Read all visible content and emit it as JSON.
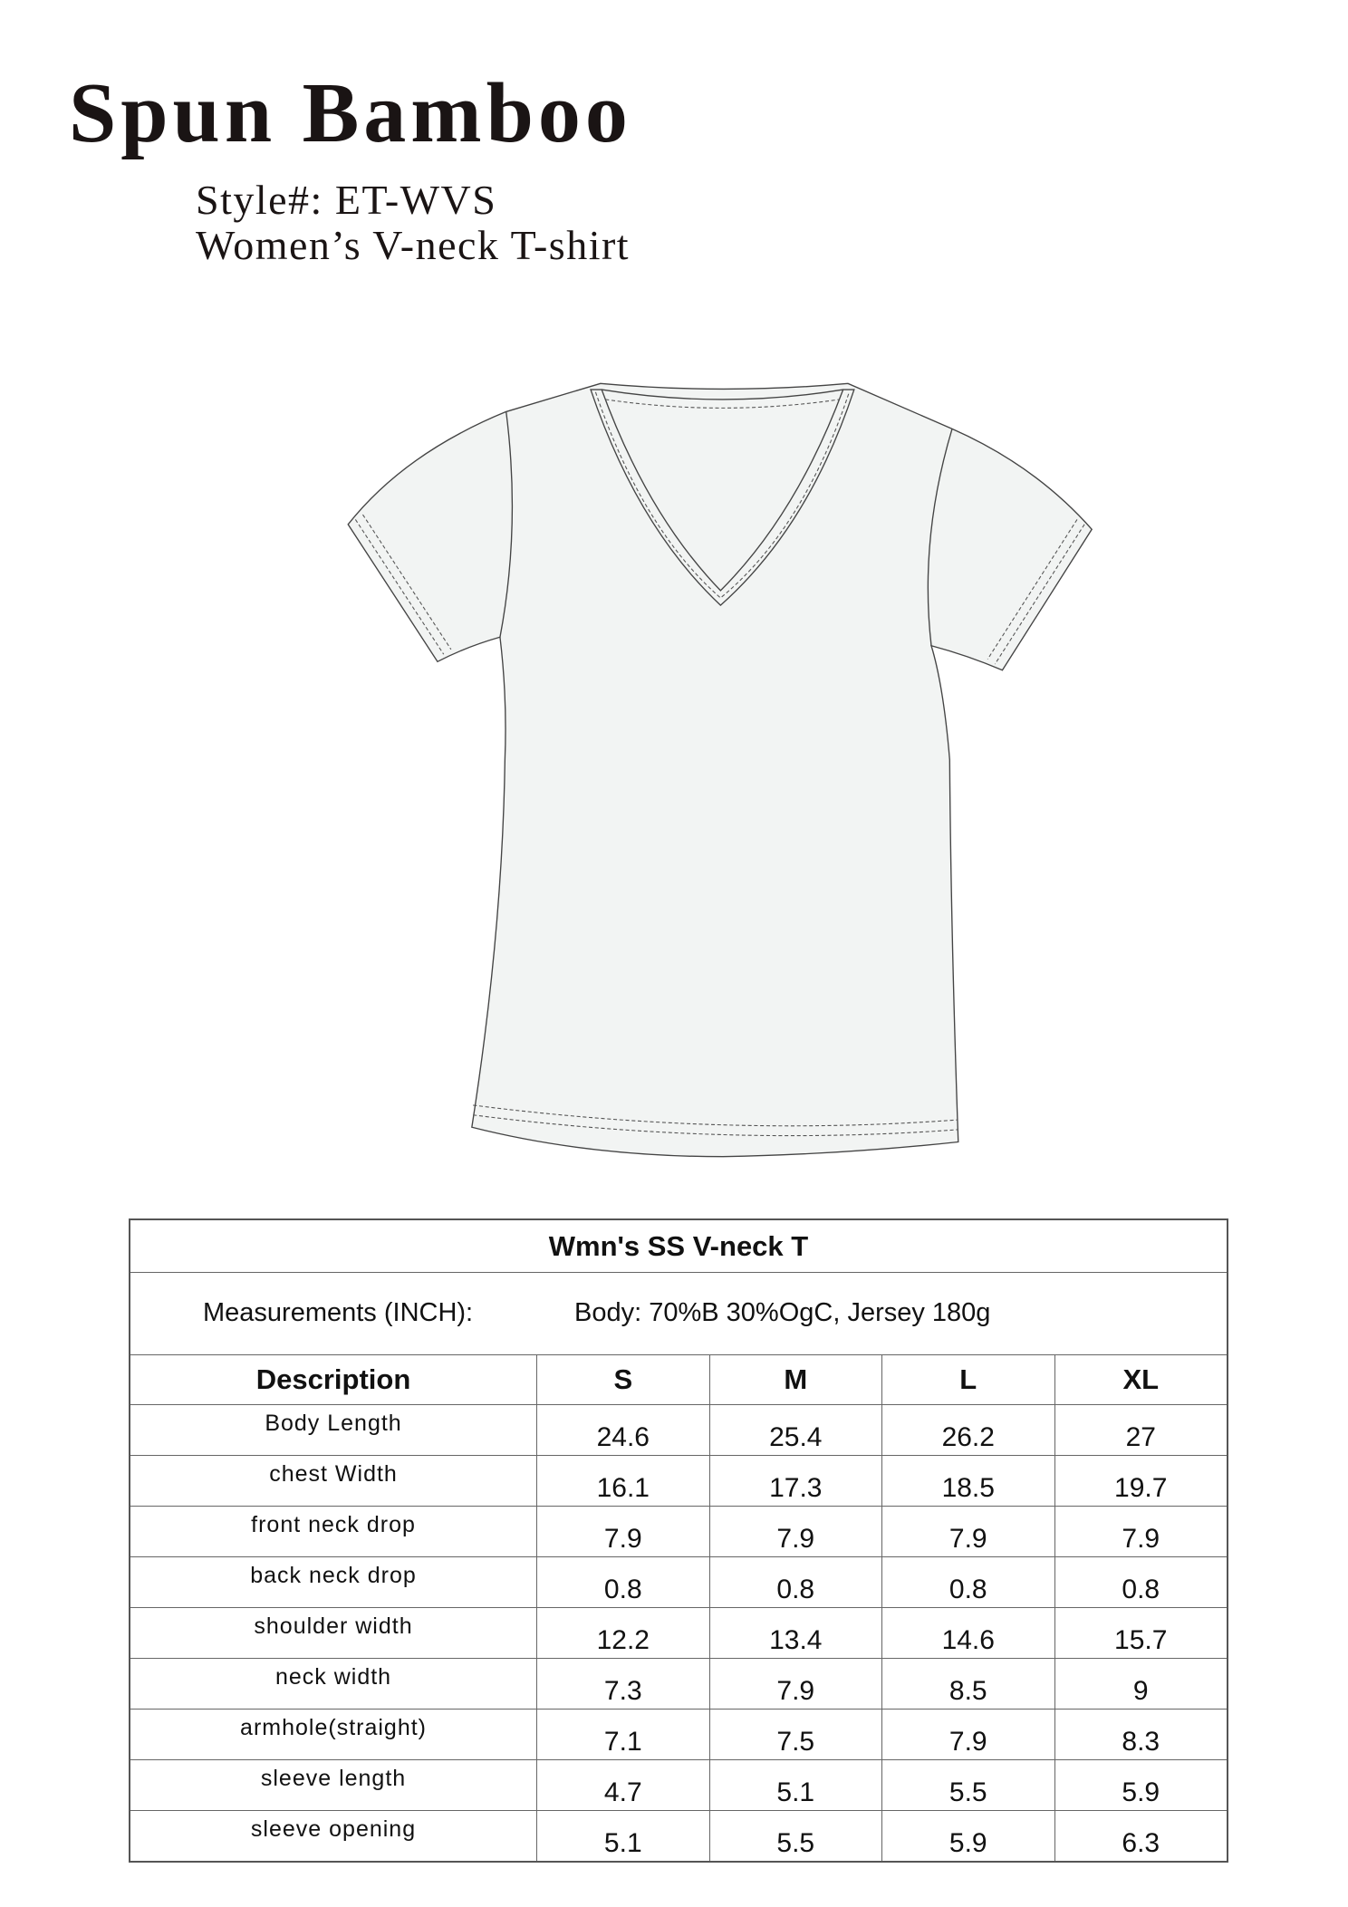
{
  "header": {
    "brand": "Spun Bamboo",
    "style_line": "Style#:  ET-WVS",
    "product_name": "Women’s V-neck T-shirt"
  },
  "illustration": {
    "type": "technical flat sketch",
    "garment": "v-neck t-shirt",
    "fill_color": "#f2f4f3"
  },
  "table": {
    "title": "Wmn's SS V-neck T",
    "measurements_label": "Measurements (INCH):",
    "fabric": "Body: 70%B 30%OgC, Jersey 180g",
    "columns": [
      "Description",
      "S",
      "M",
      "L",
      "XL"
    ],
    "rows": [
      {
        "desc": "Body Length",
        "v": [
          "24.6",
          "25.4",
          "26.2",
          "27"
        ]
      },
      {
        "desc": "chest Width",
        "v": [
          "16.1",
          "17.3",
          "18.5",
          "19.7"
        ]
      },
      {
        "desc": "front neck drop",
        "v": [
          "7.9",
          "7.9",
          "7.9",
          "7.9"
        ]
      },
      {
        "desc": "back neck drop",
        "v": [
          "0.8",
          "0.8",
          "0.8",
          "0.8"
        ]
      },
      {
        "desc": "shoulder width",
        "v": [
          "12.2",
          "13.4",
          "14.6",
          "15.7"
        ]
      },
      {
        "desc": "neck width",
        "v": [
          "7.3",
          "7.9",
          "8.5",
          "9"
        ]
      },
      {
        "desc": "armhole(straight)",
        "v": [
          "7.1",
          "7.5",
          "7.9",
          "8.3"
        ]
      },
      {
        "desc": "sleeve length",
        "v": [
          "4.7",
          "5.1",
          "5.5",
          "5.9"
        ]
      },
      {
        "desc": "sleeve opening",
        "v": [
          "5.1",
          "5.5",
          "5.9",
          "6.3"
        ]
      }
    ]
  }
}
